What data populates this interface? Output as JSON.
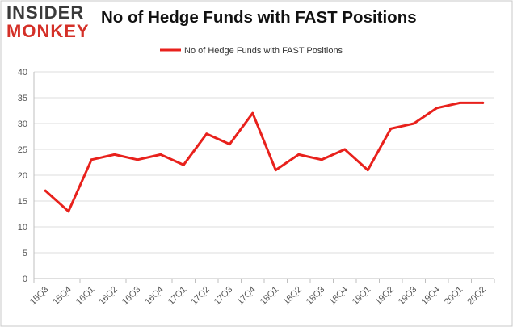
{
  "logo": {
    "line1": "INSIDER",
    "line2": "MONKEY"
  },
  "colors": {
    "series": "#e8211c",
    "grid": "#dcdcdc",
    "axis": "#bfbfbf",
    "frame": "#c8c8c8",
    "logo_red": "#d43028"
  },
  "chart_data": {
    "type": "line",
    "title": "No of Hedge Funds with FAST Positions",
    "xlabel": "",
    "ylabel": "",
    "categories": [
      "15Q3",
      "15Q4",
      "16Q1",
      "16Q2",
      "16Q3",
      "16Q4",
      "17Q1",
      "17Q2",
      "17Q3",
      "17Q4",
      "18Q1",
      "18Q2",
      "18Q3",
      "18Q4",
      "19Q1",
      "19Q2",
      "19Q3",
      "19Q4",
      "20Q1",
      "20Q2"
    ],
    "series": [
      {
        "name": "No of Hedge Funds with FAST Positions",
        "values": [
          17,
          13,
          23,
          24,
          23,
          24,
          22,
          28,
          26,
          32,
          21,
          24,
          23,
          25,
          21,
          29,
          30,
          33,
          34,
          34
        ]
      }
    ],
    "ylim": [
      0,
      40
    ],
    "yticks": [
      0,
      5,
      10,
      15,
      20,
      25,
      30,
      35,
      40
    ],
    "grid": true,
    "legend_position": "top-center"
  }
}
